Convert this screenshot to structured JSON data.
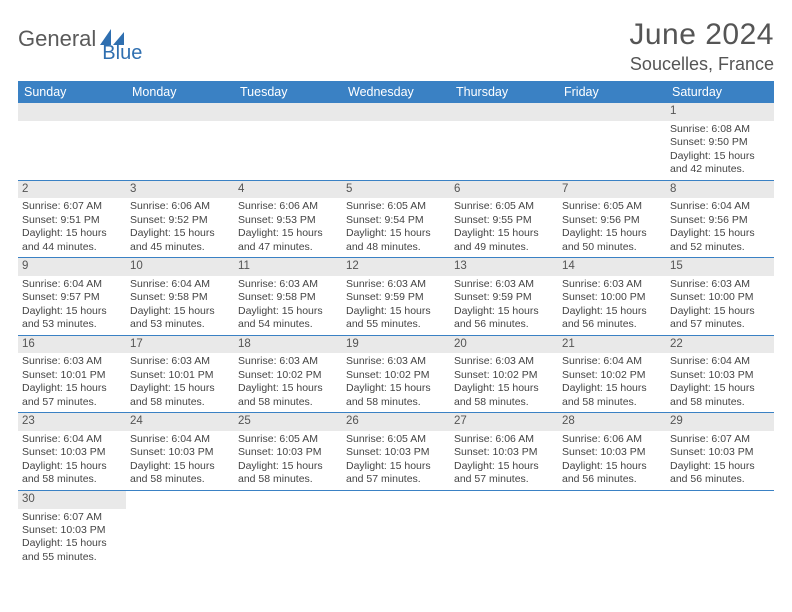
{
  "brand": {
    "part1": "General",
    "part2": "Blue"
  },
  "title": "June 2024",
  "location": "Soucelles, France",
  "colors": {
    "header_bg": "#3a81c4",
    "header_text": "#ffffff",
    "daynum_bg": "#e9e9e9",
    "cell_border": "#3a81c4",
    "logo_gray": "#5a5a5a",
    "logo_blue": "#2f6fb0"
  },
  "weekdays": [
    "Sunday",
    "Monday",
    "Tuesday",
    "Wednesday",
    "Thursday",
    "Friday",
    "Saturday"
  ],
  "weeks": [
    [
      {
        "empty": true
      },
      {
        "empty": true
      },
      {
        "empty": true
      },
      {
        "empty": true
      },
      {
        "empty": true
      },
      {
        "empty": true
      },
      {
        "day": "1",
        "sunrise": "Sunrise: 6:08 AM",
        "sunset": "Sunset: 9:50 PM",
        "daylight1": "Daylight: 15 hours",
        "daylight2": "and 42 minutes."
      }
    ],
    [
      {
        "day": "2",
        "sunrise": "Sunrise: 6:07 AM",
        "sunset": "Sunset: 9:51 PM",
        "daylight1": "Daylight: 15 hours",
        "daylight2": "and 44 minutes."
      },
      {
        "day": "3",
        "sunrise": "Sunrise: 6:06 AM",
        "sunset": "Sunset: 9:52 PM",
        "daylight1": "Daylight: 15 hours",
        "daylight2": "and 45 minutes."
      },
      {
        "day": "4",
        "sunrise": "Sunrise: 6:06 AM",
        "sunset": "Sunset: 9:53 PM",
        "daylight1": "Daylight: 15 hours",
        "daylight2": "and 47 minutes."
      },
      {
        "day": "5",
        "sunrise": "Sunrise: 6:05 AM",
        "sunset": "Sunset: 9:54 PM",
        "daylight1": "Daylight: 15 hours",
        "daylight2": "and 48 minutes."
      },
      {
        "day": "6",
        "sunrise": "Sunrise: 6:05 AM",
        "sunset": "Sunset: 9:55 PM",
        "daylight1": "Daylight: 15 hours",
        "daylight2": "and 49 minutes."
      },
      {
        "day": "7",
        "sunrise": "Sunrise: 6:05 AM",
        "sunset": "Sunset: 9:56 PM",
        "daylight1": "Daylight: 15 hours",
        "daylight2": "and 50 minutes."
      },
      {
        "day": "8",
        "sunrise": "Sunrise: 6:04 AM",
        "sunset": "Sunset: 9:56 PM",
        "daylight1": "Daylight: 15 hours",
        "daylight2": "and 52 minutes."
      }
    ],
    [
      {
        "day": "9",
        "sunrise": "Sunrise: 6:04 AM",
        "sunset": "Sunset: 9:57 PM",
        "daylight1": "Daylight: 15 hours",
        "daylight2": "and 53 minutes."
      },
      {
        "day": "10",
        "sunrise": "Sunrise: 6:04 AM",
        "sunset": "Sunset: 9:58 PM",
        "daylight1": "Daylight: 15 hours",
        "daylight2": "and 53 minutes."
      },
      {
        "day": "11",
        "sunrise": "Sunrise: 6:03 AM",
        "sunset": "Sunset: 9:58 PM",
        "daylight1": "Daylight: 15 hours",
        "daylight2": "and 54 minutes."
      },
      {
        "day": "12",
        "sunrise": "Sunrise: 6:03 AM",
        "sunset": "Sunset: 9:59 PM",
        "daylight1": "Daylight: 15 hours",
        "daylight2": "and 55 minutes."
      },
      {
        "day": "13",
        "sunrise": "Sunrise: 6:03 AM",
        "sunset": "Sunset: 9:59 PM",
        "daylight1": "Daylight: 15 hours",
        "daylight2": "and 56 minutes."
      },
      {
        "day": "14",
        "sunrise": "Sunrise: 6:03 AM",
        "sunset": "Sunset: 10:00 PM",
        "daylight1": "Daylight: 15 hours",
        "daylight2": "and 56 minutes."
      },
      {
        "day": "15",
        "sunrise": "Sunrise: 6:03 AM",
        "sunset": "Sunset: 10:00 PM",
        "daylight1": "Daylight: 15 hours",
        "daylight2": "and 57 minutes."
      }
    ],
    [
      {
        "day": "16",
        "sunrise": "Sunrise: 6:03 AM",
        "sunset": "Sunset: 10:01 PM",
        "daylight1": "Daylight: 15 hours",
        "daylight2": "and 57 minutes."
      },
      {
        "day": "17",
        "sunrise": "Sunrise: 6:03 AM",
        "sunset": "Sunset: 10:01 PM",
        "daylight1": "Daylight: 15 hours",
        "daylight2": "and 58 minutes."
      },
      {
        "day": "18",
        "sunrise": "Sunrise: 6:03 AM",
        "sunset": "Sunset: 10:02 PM",
        "daylight1": "Daylight: 15 hours",
        "daylight2": "and 58 minutes."
      },
      {
        "day": "19",
        "sunrise": "Sunrise: 6:03 AM",
        "sunset": "Sunset: 10:02 PM",
        "daylight1": "Daylight: 15 hours",
        "daylight2": "and 58 minutes."
      },
      {
        "day": "20",
        "sunrise": "Sunrise: 6:03 AM",
        "sunset": "Sunset: 10:02 PM",
        "daylight1": "Daylight: 15 hours",
        "daylight2": "and 58 minutes."
      },
      {
        "day": "21",
        "sunrise": "Sunrise: 6:04 AM",
        "sunset": "Sunset: 10:02 PM",
        "daylight1": "Daylight: 15 hours",
        "daylight2": "and 58 minutes."
      },
      {
        "day": "22",
        "sunrise": "Sunrise: 6:04 AM",
        "sunset": "Sunset: 10:03 PM",
        "daylight1": "Daylight: 15 hours",
        "daylight2": "and 58 minutes."
      }
    ],
    [
      {
        "day": "23",
        "sunrise": "Sunrise: 6:04 AM",
        "sunset": "Sunset: 10:03 PM",
        "daylight1": "Daylight: 15 hours",
        "daylight2": "and 58 minutes."
      },
      {
        "day": "24",
        "sunrise": "Sunrise: 6:04 AM",
        "sunset": "Sunset: 10:03 PM",
        "daylight1": "Daylight: 15 hours",
        "daylight2": "and 58 minutes."
      },
      {
        "day": "25",
        "sunrise": "Sunrise: 6:05 AM",
        "sunset": "Sunset: 10:03 PM",
        "daylight1": "Daylight: 15 hours",
        "daylight2": "and 58 minutes."
      },
      {
        "day": "26",
        "sunrise": "Sunrise: 6:05 AM",
        "sunset": "Sunset: 10:03 PM",
        "daylight1": "Daylight: 15 hours",
        "daylight2": "and 57 minutes."
      },
      {
        "day": "27",
        "sunrise": "Sunrise: 6:06 AM",
        "sunset": "Sunset: 10:03 PM",
        "daylight1": "Daylight: 15 hours",
        "daylight2": "and 57 minutes."
      },
      {
        "day": "28",
        "sunrise": "Sunrise: 6:06 AM",
        "sunset": "Sunset: 10:03 PM",
        "daylight1": "Daylight: 15 hours",
        "daylight2": "and 56 minutes."
      },
      {
        "day": "29",
        "sunrise": "Sunrise: 6:07 AM",
        "sunset": "Sunset: 10:03 PM",
        "daylight1": "Daylight: 15 hours",
        "daylight2": "and 56 minutes."
      }
    ],
    [
      {
        "day": "30",
        "sunrise": "Sunrise: 6:07 AM",
        "sunset": "Sunset: 10:03 PM",
        "daylight1": "Daylight: 15 hours",
        "daylight2": "and 55 minutes."
      },
      {
        "empty": true
      },
      {
        "empty": true
      },
      {
        "empty": true
      },
      {
        "empty": true
      },
      {
        "empty": true
      },
      {
        "empty": true
      }
    ]
  ]
}
